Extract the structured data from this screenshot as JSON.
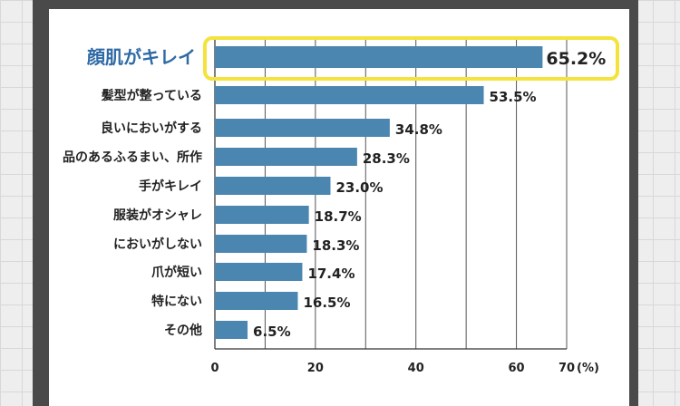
{
  "chart_data": {
    "type": "bar",
    "orientation": "horizontal",
    "categories": [
      "顔肌がキレイ",
      "髪型が整っている",
      "良いにおいがする",
      "品のあるふるまい、所作",
      "手がキレイ",
      "服装がオシャレ",
      "においがしない",
      "爪が短い",
      "特にない",
      "その他"
    ],
    "values": [
      65.2,
      53.5,
      34.8,
      28.3,
      23.0,
      18.7,
      18.3,
      17.4,
      16.5,
      6.5
    ],
    "value_labels": [
      "65.2%",
      "53.5%",
      "34.8%",
      "28.3%",
      "23.0%",
      "18.7%",
      "18.3%",
      "17.4%",
      "16.5%",
      "6.5%"
    ],
    "highlight_index": 0,
    "xlim": [
      0,
      70
    ],
    "x_ticks": [
      "0",
      "20",
      "40",
      "60",
      "70"
    ],
    "x_unit": "(%)",
    "gridlines": [
      0,
      10,
      20,
      30,
      40,
      50,
      60,
      70
    ],
    "colors": {
      "bar": "#4a86b0",
      "highlight_outline": "#f4e33c",
      "highlight_text": "#2f6aa5",
      "grid": "#555555"
    }
  }
}
